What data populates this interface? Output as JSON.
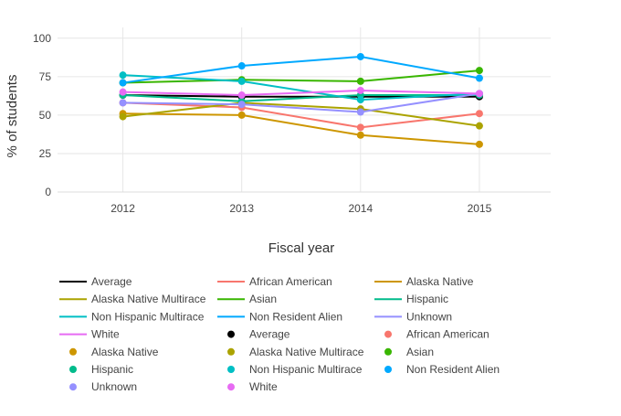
{
  "chart_data": {
    "type": "line",
    "title": "",
    "xlabel": "Fiscal year",
    "ylabel": "% of students",
    "x": [
      2012,
      2013,
      2014,
      2015
    ],
    "x_ticks": [
      "2012",
      "2013",
      "2014",
      "2015"
    ],
    "xlim": [
      2011.45,
      2015.6
    ],
    "ylim": [
      0,
      107
    ],
    "y_ticks": [
      0,
      25,
      50,
      75,
      100
    ],
    "grid": true,
    "legend_placement": "bottom",
    "series": [
      {
        "name": "Average",
        "color": "#000000",
        "values": [
          63,
          62,
          62,
          62
        ]
      },
      {
        "name": "African American",
        "color": "#F8766D",
        "values": [
          58,
          55,
          42,
          51
        ]
      },
      {
        "name": "Alaska Native",
        "color": "#CD9600",
        "values": [
          51,
          50,
          37,
          31
        ]
      },
      {
        "name": "Alaska Native Multirace",
        "color": "#ABA300",
        "values": [
          49,
          58,
          54,
          43
        ]
      },
      {
        "name": "Asian",
        "color": "#39B600",
        "values": [
          71,
          73,
          72,
          79
        ]
      },
      {
        "name": "Hispanic",
        "color": "#00BB8B",
        "values": [
          63,
          59,
          63,
          63
        ]
      },
      {
        "name": "Non Hispanic Multirace",
        "color": "#00BFC4",
        "values": [
          76,
          72,
          60,
          64
        ]
      },
      {
        "name": "Non Resident Alien",
        "color": "#00A9FF",
        "values": [
          71,
          82,
          88,
          74
        ]
      },
      {
        "name": "Unknown",
        "color": "#9590FF",
        "values": [
          58,
          57,
          52,
          64
        ]
      },
      {
        "name": "White",
        "color": "#E76BF3",
        "values": [
          65,
          63,
          66,
          64
        ]
      }
    ],
    "legend_line_entries": [
      "Average",
      "African American",
      "Alaska Native",
      "Alaska Native Multirace",
      "Asian",
      "Hispanic",
      "Non Hispanic Multirace",
      "Non Resident Alien",
      "Unknown",
      "White"
    ],
    "legend_marker_entries": [
      "Average",
      "African American",
      "Alaska Native",
      "Alaska Native Multirace",
      "Asian",
      "Hispanic",
      "Non Hispanic Multirace",
      "Non Resident Alien",
      "Unknown",
      "White"
    ]
  }
}
